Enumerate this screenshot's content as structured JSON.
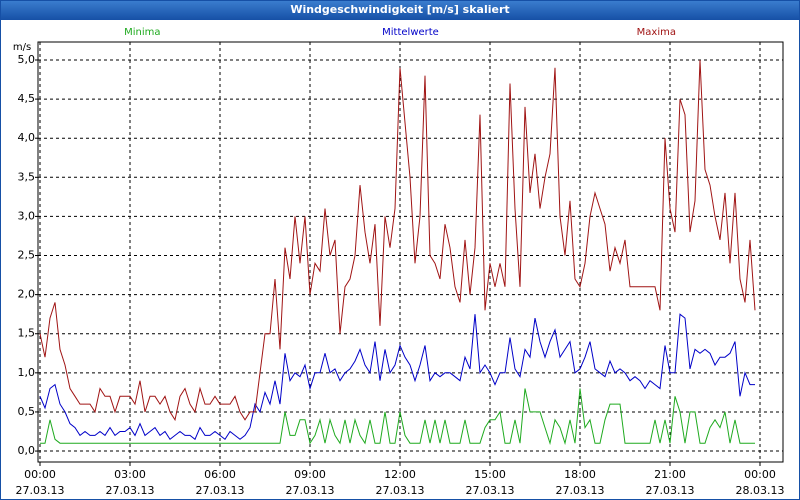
{
  "window_title": "Windgeschwindigkeit [m/s] skaliert",
  "chart_data": {
    "type": "line",
    "ylabel": "m/s",
    "x": [
      0,
      10,
      20,
      30,
      40,
      50,
      60,
      70,
      80,
      90,
      100,
      110,
      120,
      130,
      140,
      150,
      160,
      170,
      180,
      190,
      200,
      210,
      220,
      230,
      240,
      250,
      260,
      270,
      280,
      290,
      300,
      310,
      320,
      330,
      340,
      350,
      360,
      370,
      380,
      390,
      400,
      410,
      420,
      430,
      440,
      450,
      460,
      470,
      480,
      490,
      500,
      510,
      520,
      530,
      540,
      550,
      560,
      570,
      580,
      590,
      600,
      610,
      620,
      630,
      640,
      650,
      660,
      670,
      680,
      690,
      700,
      710,
      720,
      730,
      740,
      750,
      760,
      770,
      780,
      790,
      800,
      810,
      820,
      830,
      840,
      850,
      860,
      870,
      880,
      890,
      900,
      910,
      920,
      930,
      940,
      950,
      960,
      970,
      980,
      990,
      1000,
      1010,
      1020,
      1030,
      1040,
      1050,
      1060,
      1070,
      1080,
      1090,
      1100,
      1110,
      1120,
      1130,
      1140,
      1150,
      1160,
      1170,
      1180,
      1190,
      1200,
      1210,
      1220,
      1230,
      1240,
      1250,
      1260,
      1270,
      1280,
      1290,
      1300,
      1310,
      1320,
      1330,
      1340,
      1350,
      1360,
      1370,
      1380,
      1390,
      1400,
      1410,
      1420,
      1430
    ],
    "series": [
      {
        "name": "Minima",
        "color": "#1faa1f",
        "values": [
          0.1,
          0.1,
          0.4,
          0.15,
          0.1,
          0.1,
          0.1,
          0.1,
          0.1,
          0.1,
          0.1,
          0.1,
          0.1,
          0.1,
          0.1,
          0.1,
          0.1,
          0.1,
          0.1,
          0.1,
          0.1,
          0.1,
          0.1,
          0.1,
          0.1,
          0.1,
          0.1,
          0.1,
          0.1,
          0.1,
          0.1,
          0.1,
          0.1,
          0.1,
          0.1,
          0.1,
          0.1,
          0.1,
          0.1,
          0.1,
          0.1,
          0.1,
          0.1,
          0.1,
          0.1,
          0.1,
          0.1,
          0.1,
          0.1,
          0.5,
          0.2,
          0.2,
          0.4,
          0.4,
          0.1,
          0.2,
          0.4,
          0.1,
          0.4,
          0.2,
          0.1,
          0.4,
          0.1,
          0.4,
          0.2,
          0.1,
          0.4,
          0.1,
          0.1,
          0.5,
          0.1,
          0.1,
          0.5,
          0.2,
          0.1,
          0.1,
          0.1,
          0.4,
          0.1,
          0.4,
          0.1,
          0.4,
          0.1,
          0.1,
          0.1,
          0.4,
          0.1,
          0.1,
          0.1,
          0.3,
          0.4,
          0.4,
          0.5,
          0.1,
          0.1,
          0.4,
          0.1,
          0.8,
          0.5,
          0.5,
          0.5,
          0.3,
          0.1,
          0.4,
          0.3,
          0.1,
          0.4,
          0.1,
          0.8,
          0.3,
          0.4,
          0.1,
          0.1,
          0.4,
          0.6,
          0.6,
          0.6,
          0.1,
          0.1,
          0.1,
          0.1,
          0.1,
          0.1,
          0.4,
          0.1,
          0.4,
          0.1,
          0.7,
          0.5,
          0.1,
          0.5,
          0.5,
          0.1,
          0.1,
          0.3,
          0.4,
          0.3,
          0.5,
          0.1,
          0.4,
          0.1,
          0.1,
          0.1,
          0.1
        ]
      },
      {
        "name": "Mittelwerte",
        "color": "#0000c8",
        "values": [
          0.7,
          0.55,
          0.8,
          0.85,
          0.6,
          0.5,
          0.35,
          0.3,
          0.2,
          0.25,
          0.2,
          0.2,
          0.25,
          0.2,
          0.3,
          0.2,
          0.25,
          0.25,
          0.3,
          0.2,
          0.35,
          0.2,
          0.25,
          0.3,
          0.2,
          0.25,
          0.15,
          0.2,
          0.25,
          0.2,
          0.2,
          0.15,
          0.3,
          0.2,
          0.2,
          0.25,
          0.2,
          0.15,
          0.25,
          0.2,
          0.15,
          0.2,
          0.3,
          0.6,
          0.5,
          0.75,
          0.6,
          0.9,
          0.6,
          1.25,
          0.9,
          1.0,
          0.95,
          1.1,
          0.8,
          1.0,
          1.0,
          1.25,
          1.0,
          1.05,
          0.9,
          1.0,
          1.05,
          1.15,
          1.3,
          1.1,
          1.0,
          1.4,
          0.9,
          1.3,
          1.0,
          1.1,
          1.35,
          1.2,
          1.1,
          0.9,
          1.1,
          1.35,
          0.9,
          1.0,
          0.95,
          1.0,
          1.0,
          0.95,
          0.9,
          1.2,
          1.05,
          1.75,
          1.0,
          1.1,
          1.0,
          0.85,
          1.0,
          1.0,
          1.45,
          1.05,
          0.95,
          1.3,
          1.2,
          1.7,
          1.4,
          1.2,
          1.4,
          1.55,
          1.2,
          1.3,
          1.4,
          1.0,
          1.05,
          1.2,
          1.4,
          1.05,
          1.0,
          0.95,
          1.15,
          1.0,
          1.05,
          1.0,
          0.9,
          0.95,
          0.9,
          0.8,
          0.9,
          0.85,
          0.8,
          1.35,
          1.0,
          1.0,
          1.75,
          1.7,
          1.05,
          1.3,
          1.25,
          1.3,
          1.25,
          1.1,
          1.2,
          1.2,
          1.25,
          1.4,
          0.7,
          1.0,
          0.85,
          0.85
        ]
      },
      {
        "name": "Maxima",
        "color": "#a01414",
        "values": [
          1.5,
          1.2,
          1.7,
          1.9,
          1.3,
          1.1,
          0.8,
          0.7,
          0.6,
          0.6,
          0.6,
          0.5,
          0.8,
          0.7,
          0.7,
          0.5,
          0.7,
          0.7,
          0.7,
          0.6,
          0.9,
          0.5,
          0.7,
          0.7,
          0.6,
          0.7,
          0.5,
          0.4,
          0.7,
          0.8,
          0.6,
          0.5,
          0.8,
          0.6,
          0.6,
          0.7,
          0.6,
          0.6,
          0.6,
          0.7,
          0.5,
          0.4,
          0.5,
          0.5,
          1.0,
          1.5,
          1.5,
          2.2,
          1.3,
          2.6,
          2.2,
          3.0,
          2.4,
          3.0,
          2.0,
          2.4,
          2.3,
          3.1,
          2.5,
          2.7,
          1.5,
          2.1,
          2.2,
          2.5,
          3.4,
          2.8,
          2.4,
          2.9,
          1.6,
          3.0,
          2.6,
          3.1,
          4.9,
          4.2,
          3.5,
          2.4,
          3.0,
          4.8,
          2.5,
          2.4,
          2.2,
          2.9,
          2.6,
          2.1,
          1.9,
          2.7,
          2.0,
          2.6,
          4.3,
          1.8,
          2.4,
          2.1,
          2.4,
          2.1,
          4.7,
          3.1,
          2.1,
          4.4,
          3.3,
          3.8,
          3.1,
          3.5,
          3.8,
          4.9,
          3.0,
          2.5,
          3.2,
          2.2,
          2.1,
          2.4,
          3.0,
          3.3,
          3.1,
          2.9,
          2.3,
          2.6,
          2.4,
          2.7,
          2.1,
          2.1,
          2.1,
          2.1,
          2.1,
          2.1,
          1.8,
          4.0,
          3.1,
          2.8,
          4.5,
          4.3,
          2.8,
          3.2,
          5.0,
          3.6,
          3.4,
          3.0,
          2.7,
          3.3,
          2.4,
          3.3,
          2.2,
          1.9,
          2.7,
          1.8
        ]
      }
    ],
    "xlim": [
      -4,
      1486
    ],
    "ylim": [
      -0.14,
      5.23
    ],
    "xticks": [
      {
        "value": 0,
        "label": "00:00",
        "sublabel": "27.03.13"
      },
      {
        "value": 180,
        "label": "03:00",
        "sublabel": "27.03.13"
      },
      {
        "value": 360,
        "label": "06:00",
        "sublabel": "27.03.13"
      },
      {
        "value": 540,
        "label": "09:00",
        "sublabel": "27.03.13"
      },
      {
        "value": 720,
        "label": "12:00",
        "sublabel": "27.03.13"
      },
      {
        "value": 900,
        "label": "15:00",
        "sublabel": "27.03.13"
      },
      {
        "value": 1080,
        "label": "18:00",
        "sublabel": "27.03.13"
      },
      {
        "value": 1260,
        "label": "21:00",
        "sublabel": "27.03.13"
      },
      {
        "value": 1440,
        "label": "00:00",
        "sublabel": "28.03.13"
      }
    ],
    "yticks": [
      {
        "value": 0,
        "label": "0,0"
      },
      {
        "value": 0.5,
        "label": "0,5"
      },
      {
        "value": 1,
        "label": "1,0"
      },
      {
        "value": 1.5,
        "label": "1,5"
      },
      {
        "value": 2,
        "label": "2,0"
      },
      {
        "value": 2.5,
        "label": "2,5"
      },
      {
        "value": 3,
        "label": "3,0"
      },
      {
        "value": 3.5,
        "label": "3,5"
      },
      {
        "value": 4,
        "label": "4,0"
      },
      {
        "value": 4.5,
        "label": "4,5"
      },
      {
        "value": 5,
        "label": "5,0"
      }
    ],
    "grid": true
  }
}
